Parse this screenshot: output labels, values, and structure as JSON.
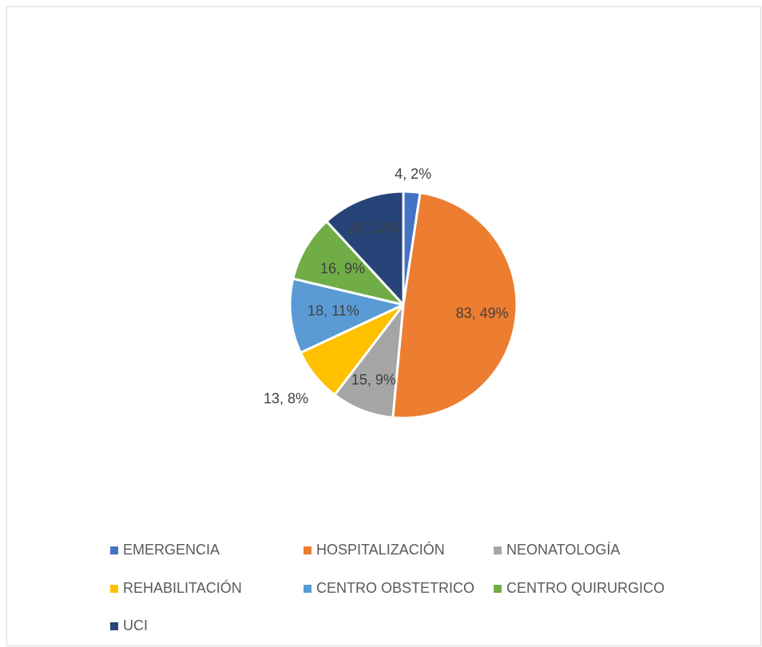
{
  "chart_data": {
    "type": "pie",
    "categories": [
      "EMERGENCIA",
      "HOSPITALIZACIÓN",
      "NEONATOLOGÍA",
      "REHABILITACIÓN",
      "CENTRO OBSTETRICO",
      "CENTRO QUIRURGICO",
      "UCI"
    ],
    "values": [
      4,
      83,
      15,
      13,
      18,
      16,
      20
    ],
    "value_labels": [
      "4, 2%",
      "83, 49%",
      "15, 9%",
      "13, 8%",
      "18, 11%",
      "16, 9%",
      "20, 12%"
    ],
    "colors": [
      "#4472c4",
      "#ed7d31",
      "#a5a5a5",
      "#ffc000",
      "#5b9bd5",
      "#70ad47",
      "#264478"
    ],
    "legend": "bottom"
  }
}
